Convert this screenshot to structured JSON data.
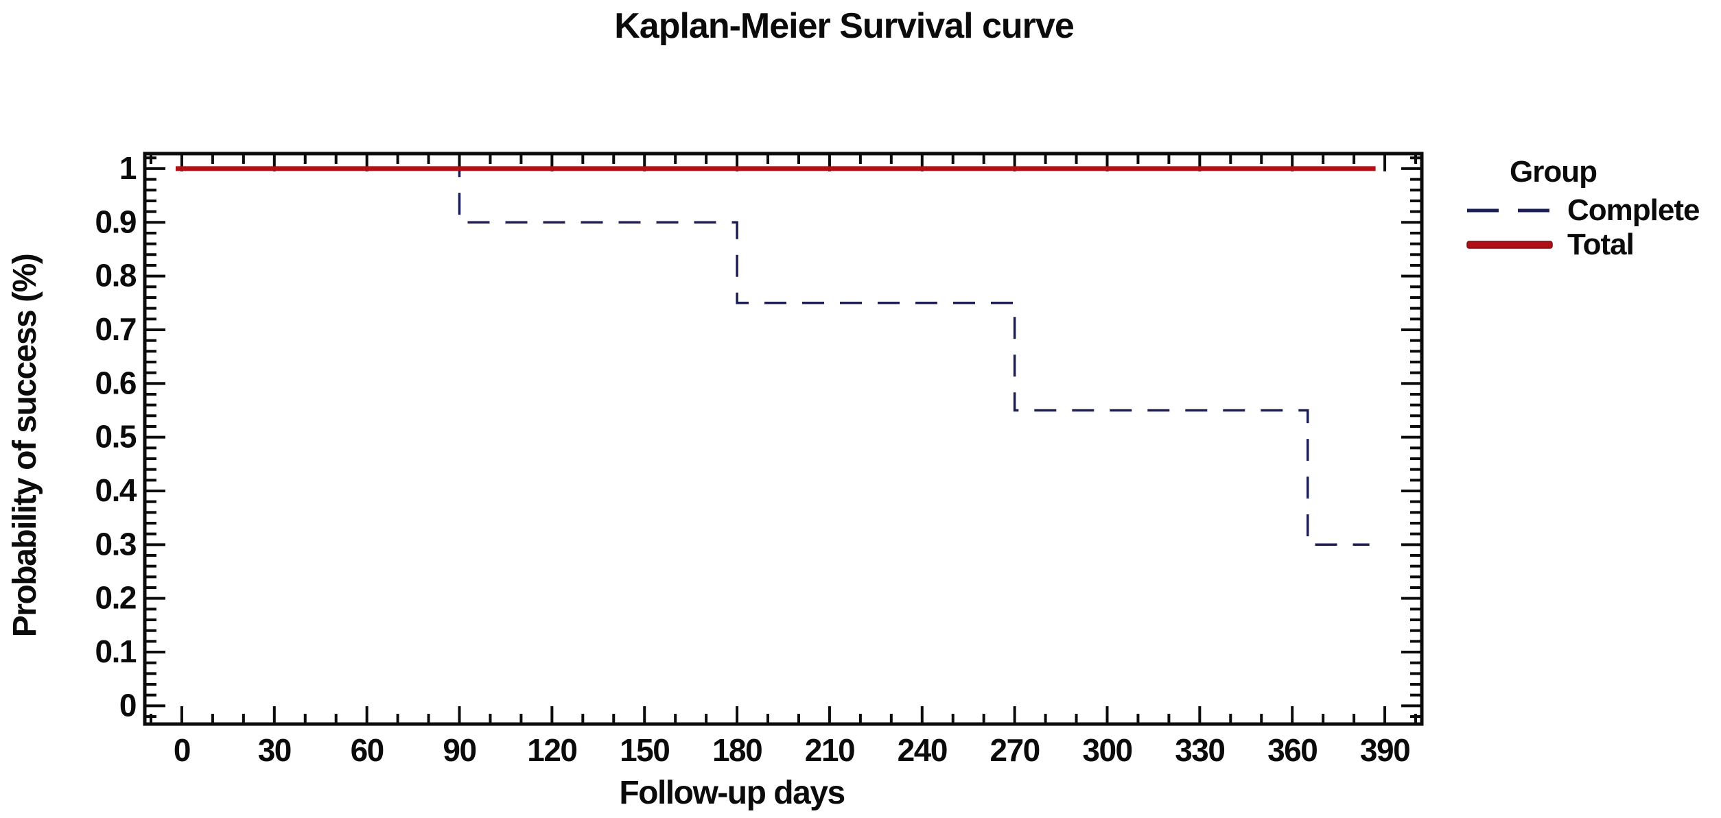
{
  "title": "Kaplan-Meier Survival curve",
  "colors": {
    "complete_line": "#1c1c56",
    "total_line": "#b01116",
    "total_line_edge": "#7c0c10",
    "axis": "#0b0b0b",
    "text": "#0b0b0b",
    "background": "#ffffff"
  },
  "legend": {
    "title": "Group",
    "entries": [
      {
        "label": "Complete",
        "style": "dashed",
        "color": "#1c1c56"
      },
      {
        "label": "Total",
        "style": "solid",
        "color": "#b01116"
      }
    ]
  },
  "chart_data": {
    "type": "line",
    "subtype": "step-survival",
    "title": "Kaplan-Meier Survival curve",
    "xlabel": "Follow-up days",
    "ylabel": "Probability of success (%)",
    "xlim": [
      -12,
      402
    ],
    "ylim": [
      -0.034,
      1.028
    ],
    "grid": false,
    "legend_position": "right-top",
    "x_major_ticks": [
      0,
      30,
      60,
      90,
      120,
      150,
      180,
      210,
      240,
      270,
      300,
      330,
      360,
      390
    ],
    "x_tick_labels": [
      "0",
      "30",
      "60",
      "90",
      "120",
      "150",
      "180",
      "210",
      "240",
      "270",
      "300",
      "330",
      "360",
      "390"
    ],
    "x_minor_step": 10,
    "y_major_ticks": [
      0,
      0.1,
      0.2,
      0.3,
      0.4,
      0.5,
      0.6,
      0.7,
      0.8,
      0.9,
      1
    ],
    "y_tick_labels": [
      "0",
      "0.1",
      "0.2",
      "0.3",
      "0.4",
      "0.5",
      "0.6",
      "0.7",
      "0.8",
      "0.9",
      "1"
    ],
    "y_minor_step": 0.02,
    "series": [
      {
        "name": "Complete",
        "color": "#1c1c56",
        "style": "dashed",
        "line_width": 3.5,
        "x": [
          0,
          90,
          90,
          180,
          180,
          270,
          270,
          365,
          365,
          385
        ],
        "y": [
          1.0,
          1.0,
          0.9,
          0.9,
          0.75,
          0.75,
          0.55,
          0.55,
          0.3,
          0.3
        ],
        "events": [
          {
            "day": 90,
            "survival": 0.9
          },
          {
            "day": 180,
            "survival": 0.75
          },
          {
            "day": 270,
            "survival": 0.55
          },
          {
            "day": 365,
            "survival": 0.3
          }
        ]
      },
      {
        "name": "Total",
        "color": "#b01116",
        "style": "solid",
        "line_width": 7,
        "x": [
          -2,
          387
        ],
        "y": [
          1.0,
          1.0
        ]
      }
    ]
  }
}
